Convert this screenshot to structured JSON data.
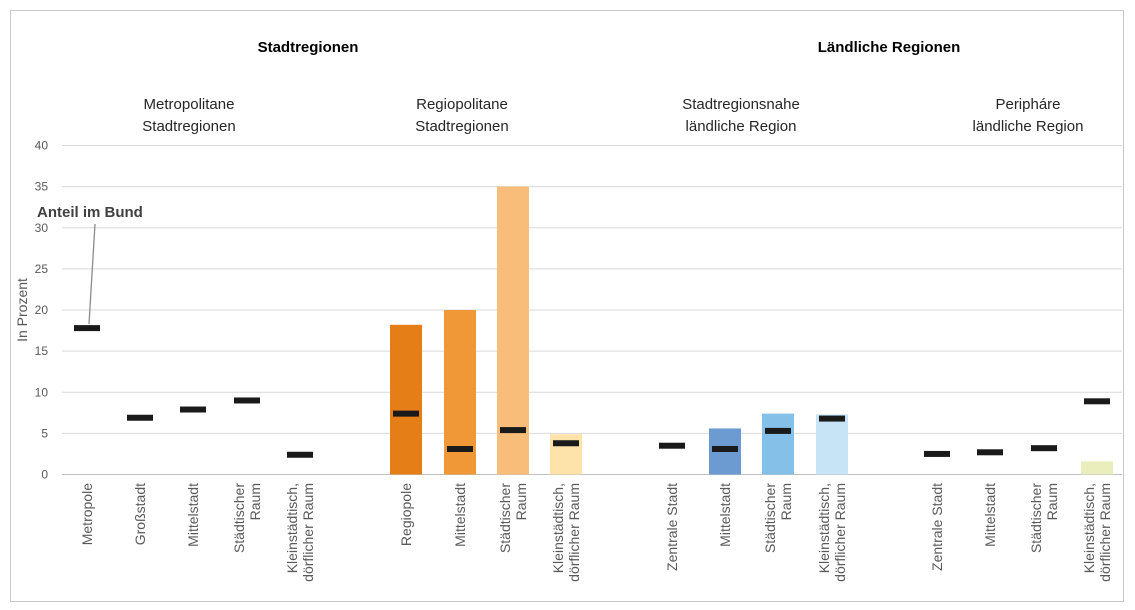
{
  "chart_data": {
    "type": "bar",
    "title": "",
    "ylabel": "In Prozent",
    "ylim": [
      0,
      40
    ],
    "yticks": [
      "0",
      "5",
      "10",
      "15",
      "20",
      "25",
      "30",
      "35",
      "40"
    ],
    "grid": true,
    "group_titles": [
      {
        "key": "stadt",
        "label": "Stadtregionen"
      },
      {
        "key": "land",
        "label": "Ländliche Regionen"
      }
    ],
    "subgroups": [
      {
        "key": "metro",
        "lines": [
          "Metropolitane",
          "Stadtregionen"
        ]
      },
      {
        "key": "regio",
        "lines": [
          "Regiopolitane",
          "Stadtregionen"
        ]
      },
      {
        "key": "stnah",
        "lines": [
          "Stadtregionsnahe",
          "ländliche Region"
        ]
      },
      {
        "key": "periph",
        "lines": [
          "Peripháre",
          "ländliche Region"
        ]
      }
    ],
    "annotation": "Anteil im Bund",
    "categories": [
      {
        "sub": "metro",
        "lines": [
          "Metropole"
        ],
        "value": null,
        "bund": 17.8,
        "color": null
      },
      {
        "sub": "metro",
        "lines": [
          "Großstadt"
        ],
        "value": null,
        "bund": 6.9,
        "color": null
      },
      {
        "sub": "metro",
        "lines": [
          "Mittelstadt"
        ],
        "value": null,
        "bund": 7.9,
        "color": null
      },
      {
        "sub": "metro",
        "lines": [
          "Städtischer",
          "Raum"
        ],
        "value": null,
        "bund": 9.0,
        "color": null
      },
      {
        "sub": "metro",
        "lines": [
          "Kleinstädtisch,",
          "dörflicher Raum"
        ],
        "value": null,
        "bund": 2.4,
        "color": null
      },
      {
        "sub": "regio",
        "lines": [
          "Regiopole"
        ],
        "value": 18.2,
        "bund": 7.4,
        "color": "#e57e16"
      },
      {
        "sub": "regio",
        "lines": [
          "Mittelstadt"
        ],
        "value": 20.0,
        "bund": 3.1,
        "color": "#f09837"
      },
      {
        "sub": "regio",
        "lines": [
          "Städtischer",
          "Raum"
        ],
        "value": 35.0,
        "bund": 5.4,
        "color": "#f8bd78"
      },
      {
        "sub": "regio",
        "lines": [
          "Kleinstädtisch,",
          "dörflicher Raum"
        ],
        "value": 4.9,
        "bund": 3.8,
        "color": "#fde2a9"
      },
      {
        "sub": "stnah",
        "lines": [
          "Zentrale Stadt"
        ],
        "value": null,
        "bund": 3.5,
        "color": null
      },
      {
        "sub": "stnah",
        "lines": [
          "Mittelstadt"
        ],
        "value": 5.6,
        "bund": 3.1,
        "color": "#6c9bd2"
      },
      {
        "sub": "stnah",
        "lines": [
          "Städtischer",
          "Raum"
        ],
        "value": 7.4,
        "bund": 5.3,
        "color": "#85c0e8"
      },
      {
        "sub": "stnah",
        "lines": [
          "Kleinstädtisch,",
          "dörflicher Raum"
        ],
        "value": 7.3,
        "bund": 6.8,
        "color": "#c7e4f6"
      },
      {
        "sub": "periph",
        "lines": [
          "Zentrale Stadt"
        ],
        "value": null,
        "bund": 2.5,
        "color": null
      },
      {
        "sub": "periph",
        "lines": [
          "Mittelstadt"
        ],
        "value": null,
        "bund": 2.7,
        "color": null
      },
      {
        "sub": "periph",
        "lines": [
          "Städtischer",
          "Raum"
        ],
        "value": null,
        "bund": 3.2,
        "color": null
      },
      {
        "sub": "periph",
        "lines": [
          "Kleinstädtisch,",
          "dörflicher Raum"
        ],
        "value": 1.6,
        "bund": 8.9,
        "color": "#eaedbc"
      }
    ],
    "colors": {
      "marker": "#1a1a1a",
      "grid": "#d9d9d9",
      "axis": "#bfbfbf"
    }
  }
}
